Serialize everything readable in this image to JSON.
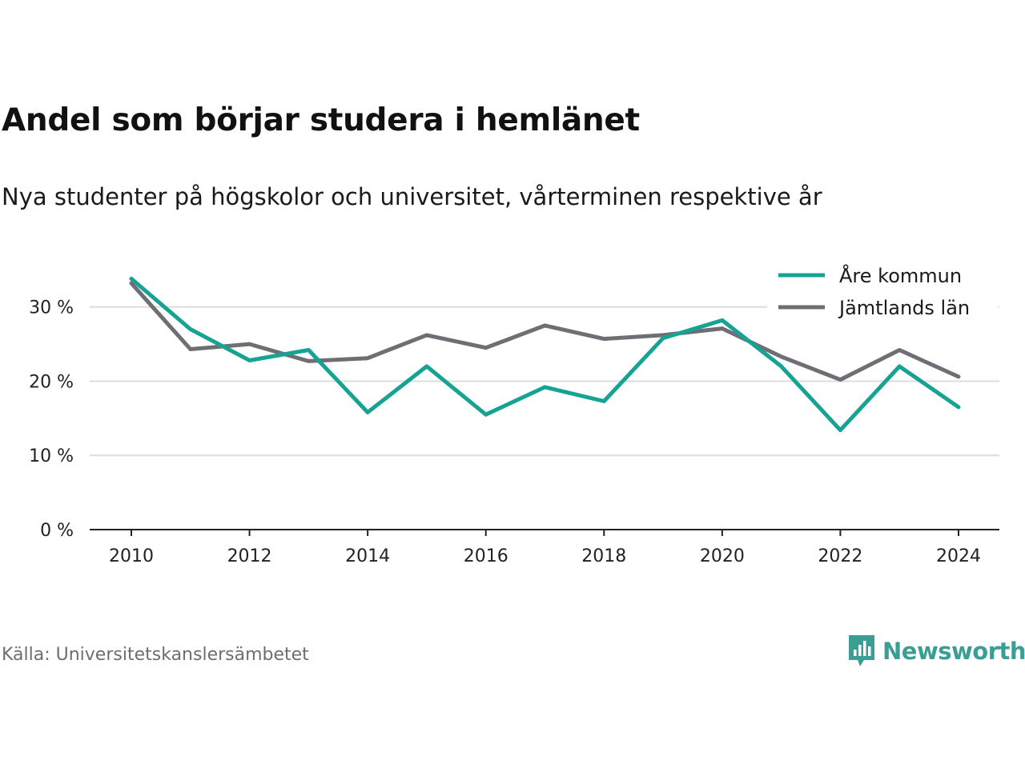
{
  "title": "Andel som börjar studera i hemlänet",
  "subtitle": "Nya studenter på högskolor och universitet, vårterminen respektive år",
  "source": "Källa: Universitetskanslersämbetet",
  "brand": {
    "name": "Newsworthy",
    "icon": "newsworthy-logo-icon",
    "color": "#3a9e94"
  },
  "chart_data": {
    "type": "line",
    "x": [
      2010,
      2011,
      2012,
      2013,
      2014,
      2015,
      2016,
      2017,
      2018,
      2019,
      2020,
      2021,
      2022,
      2023,
      2024
    ],
    "x_ticks": [
      "2010",
      "2012",
      "2014",
      "2016",
      "2018",
      "2020",
      "2022",
      "2024"
    ],
    "y_ticks": [
      "0 %",
      "10 %",
      "20 %",
      "30 %"
    ],
    "y_tick_values": [
      0,
      10,
      20,
      30
    ],
    "ylim": [
      0,
      36
    ],
    "grid": true,
    "legend_position": "top-right",
    "series": [
      {
        "name": "Åre kommun",
        "color": "#16a394",
        "values": [
          33.8,
          27.0,
          22.8,
          24.2,
          15.8,
          22.0,
          15.5,
          19.2,
          17.3,
          25.8,
          28.2,
          22.0,
          13.4,
          22.0,
          16.5
        ]
      },
      {
        "name": "Jämtlands län",
        "color": "#6f6e75",
        "values": [
          33.2,
          24.3,
          25.0,
          22.7,
          23.1,
          26.2,
          24.5,
          27.5,
          25.7,
          26.2,
          27.1,
          23.3,
          20.2,
          24.2,
          20.6
        ]
      }
    ]
  }
}
